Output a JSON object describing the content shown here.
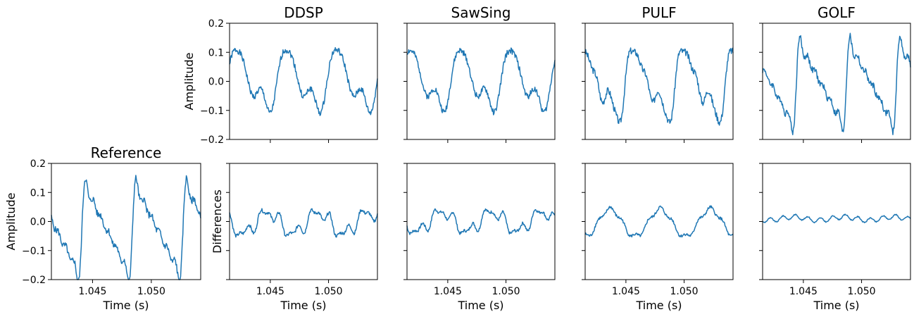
{
  "chart_data": [
    {
      "id": "ddsp",
      "type": "line",
      "title": "DDSP",
      "ylabel": "Amplitude",
      "xlabel": "",
      "ylim": [
        -0.2,
        0.2
      ],
      "yticks": [
        "0.2",
        "0.1",
        "0.0",
        "−0.1",
        "−0.2"
      ],
      "xlim": [
        1.0415,
        1.0542
      ],
      "xticks": [
        "1.045",
        "1.050"
      ],
      "amp": 0.118,
      "offset": 0.0,
      "wave": "voice",
      "seed": 1
    },
    {
      "id": "sawsing",
      "type": "line",
      "title": "SawSing",
      "ylabel": "",
      "xlabel": "",
      "ylim": [
        -0.2,
        0.2
      ],
      "yticks": [],
      "xlim": [
        1.0415,
        1.0542
      ],
      "xticks": [
        "1.045",
        "1.050"
      ],
      "amp": 0.115,
      "offset": 0.0,
      "wave": "voice",
      "seed": 2
    },
    {
      "id": "pulf",
      "type": "line",
      "title": "PULF",
      "ylabel": "",
      "xlabel": "",
      "ylim": [
        -0.2,
        0.2
      ],
      "yticks": [],
      "xlim": [
        1.0415,
        1.0542
      ],
      "xticks": [
        "1.045",
        "1.050"
      ],
      "amp": 0.13,
      "offset": -0.01,
      "wave": "sharp",
      "seed": 3
    },
    {
      "id": "golf",
      "type": "line",
      "title": "GOLF",
      "ylabel": "",
      "xlabel": "",
      "ylim": [
        -0.2,
        0.2
      ],
      "yticks": [],
      "xlim": [
        1.0415,
        1.0542
      ],
      "xticks": [
        "1.045",
        "1.050"
      ],
      "amp": 0.12,
      "offset": -0.01,
      "wave": "saw",
      "seed": 4
    },
    {
      "id": "reference",
      "type": "line",
      "title": "Reference",
      "ylabel": "Amplitude",
      "xlabel": "Time (s)",
      "ylim": [
        -0.2,
        0.2
      ],
      "yticks": [
        "0.2",
        "0.1",
        "0.0",
        "−0.1",
        "−0.2"
      ],
      "xlim": [
        1.0415,
        1.0542
      ],
      "xticks": [
        "1.045",
        "1.050"
      ],
      "amp": 0.13,
      "offset": -0.03,
      "wave": "saw",
      "seed": 5
    },
    {
      "id": "diff-ddsp",
      "type": "line",
      "title": "",
      "ylabel": "Differences",
      "xlabel": "Time (s)",
      "ylim": [
        -0.2,
        0.2
      ],
      "yticks": [],
      "xlim": [
        1.0415,
        1.0542
      ],
      "xticks": [
        "1.045",
        "1.050"
      ],
      "amp": 0.06,
      "offset": -0.005,
      "wave": "diff",
      "seed": 6
    },
    {
      "id": "diff-sawsing",
      "type": "line",
      "title": "",
      "ylabel": "",
      "xlabel": "Time (s)",
      "ylim": [
        -0.2,
        0.2
      ],
      "yticks": [],
      "xlim": [
        1.0415,
        1.0542
      ],
      "xticks": [
        "1.045",
        "1.050"
      ],
      "amp": 0.055,
      "offset": 0.0,
      "wave": "diff",
      "seed": 7
    },
    {
      "id": "diff-pulf",
      "type": "line",
      "title": "",
      "ylabel": "",
      "xlabel": "Time (s)",
      "ylim": [
        -0.2,
        0.2
      ],
      "yticks": [],
      "xlim": [
        1.0415,
        1.0542
      ],
      "xticks": [
        "1.045",
        "1.050"
      ],
      "amp": 0.055,
      "offset": -0.005,
      "wave": "slow",
      "seed": 8
    },
    {
      "id": "diff-golf",
      "type": "line",
      "title": "",
      "ylabel": "",
      "xlabel": "Time (s)",
      "ylim": [
        -0.2,
        0.2
      ],
      "yticks": [],
      "xlim": [
        1.0415,
        1.0542
      ],
      "xticks": [
        "1.045",
        "1.050"
      ],
      "amp": 0.02,
      "offset": 0.01,
      "wave": "flat",
      "seed": 9
    }
  ]
}
